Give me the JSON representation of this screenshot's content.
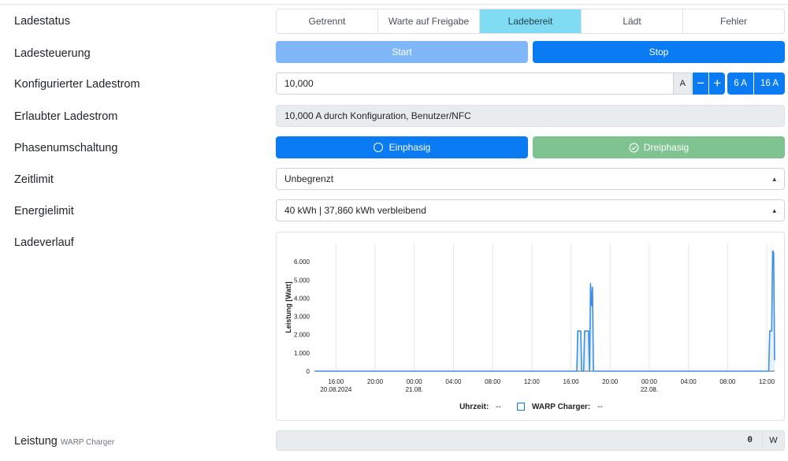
{
  "status": {
    "label": "Ladestatus",
    "options": [
      "Getrennt",
      "Warte auf Freigabe",
      "Ladebereit",
      "Lädt",
      "Fehler"
    ],
    "active_index": 2
  },
  "control": {
    "label": "Ladesteuerung",
    "start": "Start",
    "stop": "Stop"
  },
  "configured_current": {
    "label": "Konfigurierter Ladestrom",
    "value": "10,000",
    "unit": "A",
    "minus": "−",
    "plus": "+",
    "preset_6": "6 A",
    "preset_16": "16 A"
  },
  "allowed_current": {
    "label": "Erlaubter Ladestrom",
    "value": "10,000 A durch Konfiguration, Benutzer/NFC"
  },
  "phase": {
    "label": "Phasenumschaltung",
    "single": "Einphasig",
    "three": "Dreiphasig"
  },
  "time_limit": {
    "label": "Zeitlimit",
    "value": "Unbegrenzt"
  },
  "energy_limit": {
    "label": "Energielimit",
    "value": "40 kWh | 37,860 kWh verbleibend"
  },
  "history": {
    "label": "Ladeverlauf",
    "legend_time_label": "Uhrzeit:",
    "legend_time_value": "--",
    "legend_series_label": "WARP Charger:",
    "legend_series_value": "--"
  },
  "power": {
    "label": "Leistung",
    "sub": "WARP Charger",
    "value": "0",
    "unit": "W"
  },
  "colors": {
    "primary": "#0b7bf3",
    "primary_light": "#80b7f8",
    "success_light": "#7fc391",
    "info_light": "#7fdcf3"
  },
  "chart_data": {
    "type": "line",
    "ylabel": "Leistung [Watt]",
    "ylim": [
      0,
      7000
    ],
    "yticks": [
      "0",
      "1.000",
      "2.000",
      "3.000",
      "4.000",
      "5.000",
      "6.000"
    ],
    "xlim": [
      13.8,
      60.8
    ],
    "xticks": [
      {
        "h": 16,
        "top": "16:00",
        "bottom": "20.08.2024"
      },
      {
        "h": 20,
        "top": "20:00",
        "bottom": ""
      },
      {
        "h": 24,
        "top": "00:00",
        "bottom": "21.08."
      },
      {
        "h": 28,
        "top": "04:00",
        "bottom": ""
      },
      {
        "h": 32,
        "top": "08:00",
        "bottom": ""
      },
      {
        "h": 36,
        "top": "12:00",
        "bottom": ""
      },
      {
        "h": 40,
        "top": "16:00",
        "bottom": ""
      },
      {
        "h": 44,
        "top": "20:00",
        "bottom": ""
      },
      {
        "h": 48,
        "top": "00:00",
        "bottom": "22.08."
      },
      {
        "h": 52,
        "top": "04:00",
        "bottom": ""
      },
      {
        "h": 56,
        "top": "08:00",
        "bottom": ""
      },
      {
        "h": 60,
        "top": "12:00",
        "bottom": ""
      }
    ],
    "series": [
      {
        "color": "#3b8fe9",
        "points": [
          [
            13.8,
            0
          ],
          [
            40.6,
            0
          ],
          [
            40.7,
            2200
          ],
          [
            41.0,
            2200
          ],
          [
            41.1,
            0
          ],
          [
            41.3,
            0
          ],
          [
            41.4,
            2200
          ],
          [
            41.8,
            2200
          ],
          [
            41.9,
            0
          ],
          [
            42.0,
            4800
          ],
          [
            42.1,
            3600
          ],
          [
            42.2,
            4600
          ],
          [
            42.3,
            0
          ],
          [
            60.2,
            0
          ],
          [
            60.3,
            2200
          ],
          [
            60.5,
            2200
          ],
          [
            60.6,
            6600
          ],
          [
            60.7,
            6500
          ],
          [
            60.8,
            600
          ]
        ]
      }
    ]
  }
}
